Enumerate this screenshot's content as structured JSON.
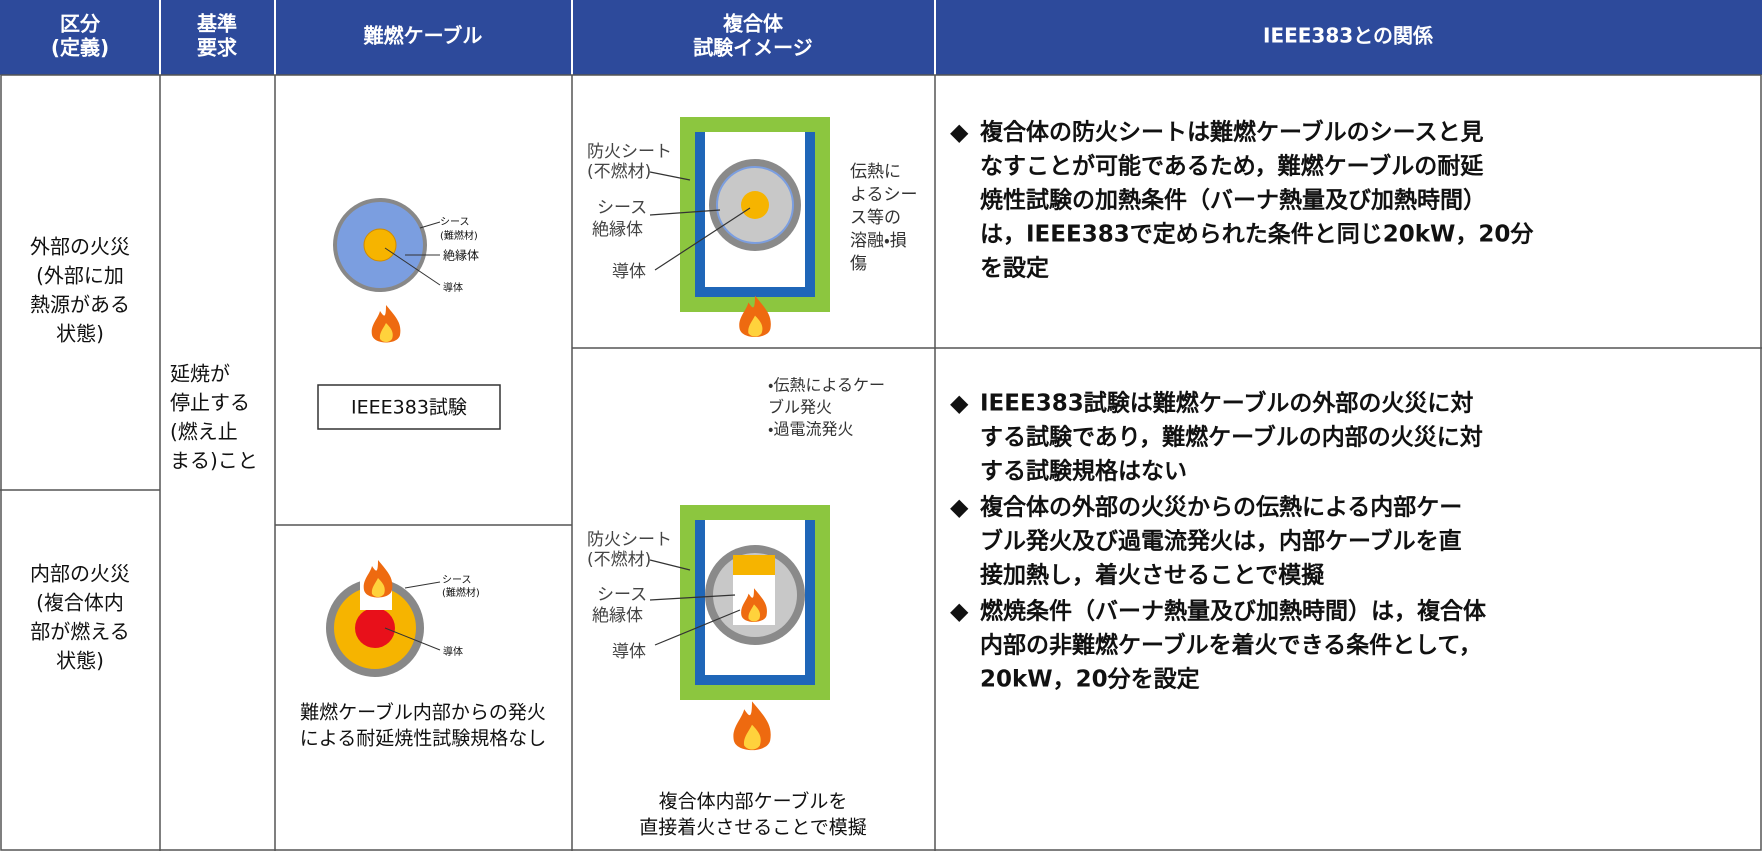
{
  "header": {
    "columns": [
      [
        "区分",
        "(定義)"
      ],
      [
        "基準",
        "要求"
      ],
      [
        "難燃ケーブル"
      ],
      [
        "複合体",
        "試験イメージ"
      ],
      [
        "IEEE383との関係"
      ]
    ]
  },
  "classification": {
    "external": [
      "外部の火災",
      "(外部に加",
      "熱源がある",
      "状態)"
    ],
    "internal": [
      "内部の火災",
      "(複合体内",
      "部が燃える",
      "状態)"
    ]
  },
  "requirement": [
    "延焼が",
    "停止する",
    "(燃え止",
    "まる)こと"
  ],
  "cable": {
    "external": {
      "sheath": "シース",
      "sheath_material": "(難燃材)",
      "insulator": "絶縁体",
      "conductor": "導体",
      "test": "IEEE383試験"
    },
    "internal": {
      "sheath": "シース",
      "sheath_material": "(難燃材)",
      "conductor": "導体",
      "caption": [
        "難燃ケーブル内部からの発火",
        "による耐延焼性試験規格なし"
      ]
    }
  },
  "composite": {
    "external": {
      "sheet": "防火シート",
      "sheet_material": "(不燃材)",
      "sheath": "シース",
      "insulator": "絶縁体",
      "conductor": "導体",
      "note": [
        "伝熱に",
        "よるシー",
        "ス等の",
        "溶融・損",
        "傷"
      ]
    },
    "internal": {
      "notes": [
        "・伝熱によるケー",
        " ブル発火",
        "・過電流発火"
      ],
      "sheet": "防火シート",
      "sheet_material": "(不燃材)",
      "sheath": "シース",
      "insulator": "絶縁体",
      "conductor": "導体",
      "caption": [
        "複合体内部ケーブルを",
        "直接着火させることで模擬"
      ]
    }
  },
  "relation": {
    "external": [
      {
        "mark": "◆",
        "lines": [
          "複合体の防火シートは難燃ケーブルのシースと見",
          "なすことが可能であるため，難燃ケーブルの耐延",
          "焼性試験の加熱条件（バーナ熱量及び加熱時間）",
          "は，IEEE383で定められた条件と同じ20kW，20分",
          "を設定"
        ]
      }
    ],
    "internal": [
      {
        "mark": "◆",
        "lines": [
          "IEEE383試験は難燃ケーブルの外部の火災に対",
          "する試験であり，難燃ケーブルの内部の火災に対",
          "する試験規格はない"
        ]
      },
      {
        "mark": "◆",
        "lines": [
          "複合体の外部の火災からの伝熱による内部ケー",
          "ブル発火及び過電流発火は，内部ケーブルを直",
          "接加熱し，着火させることで模擬"
        ]
      },
      {
        "mark": "◆",
        "lines": [
          "燃焼条件（バーナ熱量及び加熱時間）は，複合体",
          "内部の非難燃ケーブルを着火できる条件として，",
          "20kW，20分を設定"
        ]
      }
    ]
  }
}
